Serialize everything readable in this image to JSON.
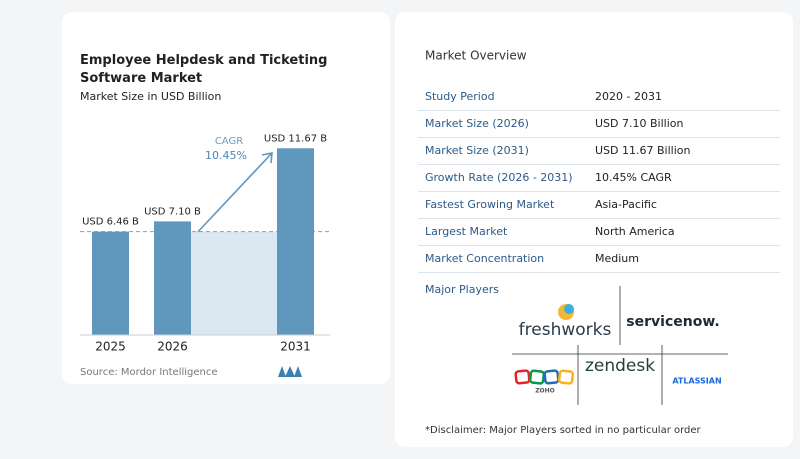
{
  "chart_data": {
    "type": "bar",
    "title": "Employee Helpdesk and Ticketing Software Market",
    "subtitle": "Market Size in USD Billion",
    "categories": [
      "2025",
      "2026",
      "2031"
    ],
    "values": [
      6.46,
      7.1,
      11.67
    ],
    "value_labels": [
      "USD 6.46 B",
      "USD 7.10 B",
      "USD 11.67 B"
    ],
    "color": "#5f97bd",
    "cagr_label": "CAGR",
    "cagr_value": "10.45%",
    "source": "Source: Mordor Intelligence"
  },
  "overview": {
    "title": "Market Overview",
    "rows": [
      [
        "Study Period",
        "2020 - 2031"
      ],
      [
        "Market Size (2026)",
        "USD 7.10 Billion"
      ],
      [
        "Market Size (2031)",
        "USD 11.67 Billion"
      ],
      [
        "Growth Rate (2026 - 2031)",
        "10.45% CAGR"
      ],
      [
        "Fastest Growing Market",
        "Asia-Pacific"
      ],
      [
        "Largest Market",
        "North America"
      ],
      [
        "Market Concentration",
        "Medium"
      ]
    ]
  },
  "players": {
    "title": "Major Players",
    "names": [
      "freshworks",
      "servicenow.",
      "zendesk",
      "ZOHO",
      "ATLASSIAN"
    ]
  },
  "disclaimer": "*Disclaimer: Major Players sorted in no particular order"
}
